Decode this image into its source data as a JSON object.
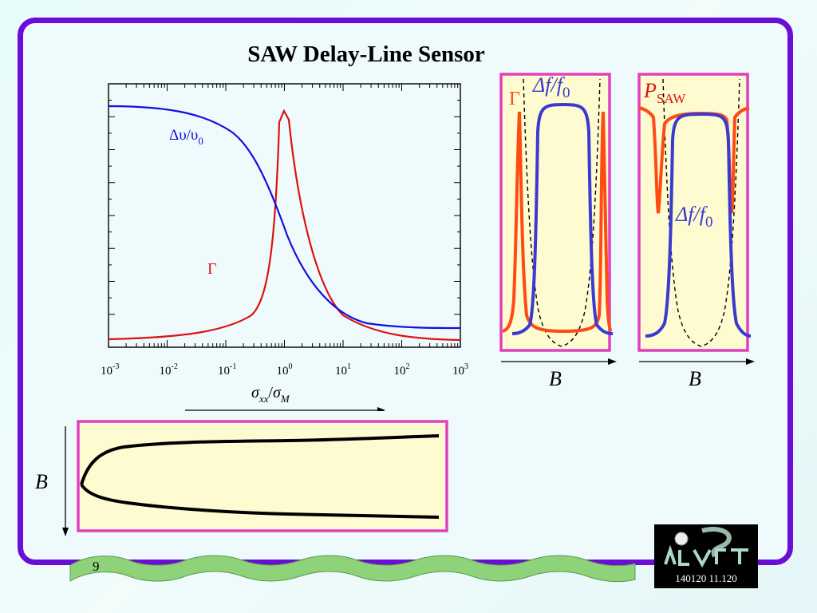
{
  "slide": {
    "title": "SAW Delay-Line Sensor",
    "page_number": "9",
    "logo_caption": "140120 11.120"
  },
  "main_plot": {
    "x_ticks": [
      {
        "base": "10",
        "exp": "-3"
      },
      {
        "base": "10",
        "exp": "-2"
      },
      {
        "base": "10",
        "exp": "-1"
      },
      {
        "base": "10",
        "exp": "0"
      },
      {
        "base": "10",
        "exp": "1"
      },
      {
        "base": "10",
        "exp": "2"
      },
      {
        "base": "10",
        "exp": "3"
      }
    ],
    "x_label": {
      "num": "σ",
      "num_sub": "xx",
      "sep": "/",
      "den": "σ",
      "den_sub": "M"
    },
    "curve_velocity": {
      "label_main": "Δυ/υ",
      "label_sub": "0",
      "color": "#1010dd"
    },
    "curve_gamma": {
      "label": "Γ",
      "color": "#dd1111"
    }
  },
  "panel_1": {
    "gamma_label": "Γ",
    "df_label": {
      "main": "Δf/f",
      "sub": "0"
    },
    "axis_label": "B"
  },
  "panel_2": {
    "p_label": {
      "main": "P",
      "sub": "SAW"
    },
    "df_label": {
      "main": "Δf/f",
      "sub": "0"
    },
    "axis_label": "B"
  },
  "bottom_panel": {
    "axis_label": "B"
  },
  "colors": {
    "frame": "#6a0dd6",
    "panel_border": "#e040c0",
    "panel_fill": "#fdfbcf",
    "blue_curve": "#3a3ad0",
    "orange_curve": "#ff4a14",
    "ribbon": "#8ed27a"
  }
}
